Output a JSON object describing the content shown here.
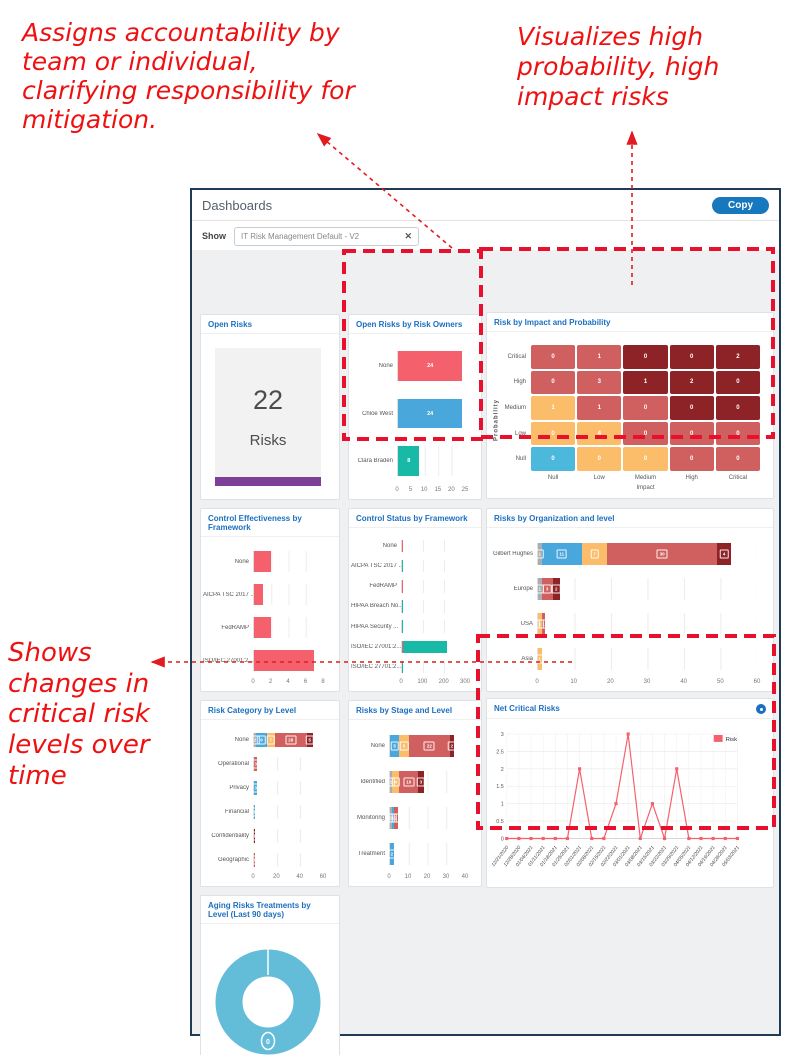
{
  "annotations": {
    "color": "#ee1111",
    "top_left": {
      "lines": [
        "Assigns accountability by",
        "team or individual,",
        "clarifying responsibility for",
        "mitigation."
      ]
    },
    "top_right": {
      "lines": [
        "Visualizes high",
        "probability, high",
        "impact risks"
      ]
    },
    "left": {
      "lines": [
        "Shows",
        "changes in",
        "critical risk",
        "levels over",
        "time"
      ]
    }
  },
  "header": {
    "title": "Dashboards",
    "copy_label": "Copy"
  },
  "filter": {
    "label": "Show",
    "value": "IT Risk Management Default - V2",
    "clear_icon": "✕"
  },
  "colors": {
    "coral": "#f4606c",
    "blue": "#4aa7dc",
    "teal": "#19b9a8",
    "orange": "#fbbd69",
    "red": "#d0605f",
    "darkred": "#8e2327",
    "gray": "#a9aeb4",
    "heat_blue": "#4cb9dc",
    "donut": "#63bdd9",
    "purple": "#7d3f98",
    "accent": "#1b6fc0",
    "highlight_red": "#e8112d"
  },
  "chart_data": [
    {
      "id": "open_risks",
      "type": "stat",
      "title": "Open Risks",
      "value": "22",
      "label": "Risks"
    },
    {
      "id": "open_risks_by_owner",
      "type": "bar",
      "title": "Open Risks by Risk Owners",
      "label_w": 46,
      "xmax": 25,
      "ticks": [
        0,
        5,
        10,
        15,
        20,
        25
      ],
      "values": "plain",
      "rows": [
        {
          "label": "None",
          "segments": [
            {
              "v": 24,
              "c": "coral"
            }
          ]
        },
        {
          "label": "Chloe West",
          "segments": [
            {
              "v": 24,
              "c": "blue"
            }
          ]
        },
        {
          "label": "Clara Braden",
          "segments": [
            {
              "v": 8,
              "c": "teal"
            }
          ]
        }
      ]
    },
    {
      "id": "risk_by_impact_probability",
      "type": "heatmap",
      "title": "Risk by Impact and Probability",
      "xlabel": "Impact",
      "ylabel": "Probability",
      "rows": [
        "Critical",
        "High",
        "Medium",
        "Low",
        "Null"
      ],
      "cols": [
        "Null",
        "Low",
        "Medium",
        "High",
        "Critical"
      ],
      "values": [
        [
          0,
          1,
          0,
          0,
          2
        ],
        [
          0,
          3,
          1,
          2,
          0
        ],
        [
          1,
          1,
          0,
          0,
          0
        ],
        [
          0,
          4,
          0,
          0,
          0
        ],
        [
          0,
          0,
          0,
          0,
          0
        ]
      ],
      "cell_colors": [
        [
          "red",
          "red",
          "darkred",
          "darkred",
          "darkred"
        ],
        [
          "red",
          "red",
          "darkred",
          "darkred",
          "darkred"
        ],
        [
          "orange",
          "red",
          "red",
          "darkred",
          "darkred"
        ],
        [
          "orange",
          "orange",
          "red",
          "red",
          "red"
        ],
        [
          "heat_blue",
          "orange",
          "orange",
          "red",
          "red"
        ]
      ]
    },
    {
      "id": "control_effectiveness",
      "type": "bar",
      "title": "Control Effectiveness by Framework",
      "label_w": 50,
      "xmax": 8,
      "ticks": [
        0,
        2,
        4,
        6,
        8
      ],
      "values": "none",
      "rows": [
        {
          "label": "None",
          "segments": [
            {
              "v": 2,
              "c": "coral"
            }
          ]
        },
        {
          "label": "AICPA TSC 2017 ...",
          "segments": [
            {
              "v": 1,
              "c": "coral"
            }
          ]
        },
        {
          "label": "FedRAMP",
          "segments": [
            {
              "v": 2,
              "c": "coral"
            }
          ]
        },
        {
          "label": "ISO/IEC 27001:2...",
          "segments": [
            {
              "v": 7,
              "c": "coral"
            }
          ]
        }
      ]
    },
    {
      "id": "control_status",
      "type": "bar",
      "title": "Control Status by Framework",
      "label_w": 50,
      "xmax": 300,
      "ticks": [
        0,
        100,
        200,
        300
      ],
      "values": "none",
      "rows": [
        {
          "label": "None",
          "segments": [
            {
              "v": 2,
              "c": "coral"
            }
          ]
        },
        {
          "label": "AICPA TSC 2017 ...",
          "segments": [
            {
              "v": 3,
              "c": "teal"
            }
          ]
        },
        {
          "label": "FedRAMP",
          "segments": [
            {
              "v": 2,
              "c": "coral"
            }
          ]
        },
        {
          "label": "HIPAA Breach No...",
          "segments": [
            {
              "v": 2,
              "c": "teal"
            }
          ]
        },
        {
          "label": "HIPAA Security ...",
          "segments": [
            {
              "v": 2,
              "c": "teal"
            }
          ]
        },
        {
          "label": "ISO/IEC 27001:2...",
          "segments": [
            {
              "v": 5,
              "c": "coral"
            },
            {
              "v": 210,
              "c": "teal"
            }
          ]
        },
        {
          "label": "ISO/IEC 27701:2...",
          "segments": [
            {
              "v": 2,
              "c": "teal"
            }
          ]
        }
      ]
    },
    {
      "id": "risks_by_org",
      "type": "bar",
      "title": "Risks by Organization and level",
      "label_w": 48,
      "xmax": 60,
      "ticks": [
        0,
        10,
        20,
        30,
        40,
        50,
        60
      ],
      "values": "boxed",
      "rows": [
        {
          "label": "Gilbert Hughes",
          "segments": [
            {
              "v": 1,
              "c": "gray"
            },
            {
              "v": 11,
              "c": "blue"
            },
            {
              "v": 7,
              "c": "orange"
            },
            {
              "v": 30,
              "c": "red"
            },
            {
              "v": 4,
              "c": "darkred"
            }
          ]
        },
        {
          "label": "Europe",
          "segments": [
            {
              "v": 1,
              "c": "gray"
            },
            {
              "v": 3,
              "c": "red"
            },
            {
              "v": 2,
              "c": "darkred"
            }
          ]
        },
        {
          "label": "USA",
          "segments": [
            {
              "v": 1,
              "c": "orange"
            },
            {
              "v": 1,
              "c": "red"
            }
          ]
        },
        {
          "label": "Asia",
          "segments": [
            {
              "v": 1,
              "c": "orange"
            }
          ]
        }
      ]
    },
    {
      "id": "risk_category_by_level",
      "type": "bar",
      "title": "Risk Category by Level",
      "label_w": 50,
      "xmax": 60,
      "ticks": [
        0,
        20,
        40,
        60
      ],
      "values": "boxed",
      "rows": [
        {
          "label": "None",
          "segments": [
            {
              "v": 2,
              "c": "gray"
            },
            {
              "v": 9,
              "c": "blue"
            },
            {
              "v": 7,
              "c": "orange"
            },
            {
              "v": 28,
              "c": "red"
            },
            {
              "v": 5,
              "c": "darkred"
            }
          ]
        },
        {
          "label": "Operational",
          "segments": [
            {
              "v": 3,
              "c": "red"
            }
          ]
        },
        {
          "label": "Privacy",
          "segments": [
            {
              "v": 3,
              "c": "blue"
            }
          ]
        },
        {
          "label": "Financial",
          "segments": [
            {
              "v": 1,
              "c": "blue"
            }
          ]
        },
        {
          "label": "Confidentiality",
          "segments": [
            {
              "v": 1,
              "c": "darkred"
            }
          ]
        },
        {
          "label": "Geographic",
          "segments": [
            {
              "v": 1,
              "c": "red"
            }
          ]
        }
      ]
    },
    {
      "id": "risks_by_stage",
      "type": "bar",
      "title": "Risks by Stage and Level",
      "label_w": 38,
      "xmax": 40,
      "ticks": [
        0,
        10,
        20,
        30,
        40
      ],
      "values": "boxed",
      "rows": [
        {
          "label": "None",
          "segments": [
            {
              "v": 5,
              "c": "blue"
            },
            {
              "v": 5,
              "c": "orange"
            },
            {
              "v": 22,
              "c": "red"
            },
            {
              "v": 2,
              "c": "darkred"
            }
          ]
        },
        {
          "label": "Identified",
          "segments": [
            {
              "v": 1,
              "c": "gray"
            },
            {
              "v": 4,
              "c": "orange"
            },
            {
              "v": 10,
              "c": "red"
            },
            {
              "v": 3,
              "c": "darkred"
            }
          ]
        },
        {
          "label": "Monitoring",
          "segments": [
            {
              "v": 1,
              "c": "gray"
            },
            {
              "v": 1,
              "c": "blue"
            },
            {
              "v": 2,
              "c": "red"
            }
          ]
        },
        {
          "label": "Treatment",
          "segments": [
            {
              "v": 2,
              "c": "blue"
            }
          ]
        }
      ]
    },
    {
      "id": "net_critical_risks",
      "type": "line",
      "title": "Net Critical Risks",
      "legend": "Risk",
      "series_color": "coral",
      "ymax": 3,
      "yticks": [
        0,
        0.5,
        1,
        1.5,
        2,
        2.5,
        3
      ],
      "x": [
        "12/21/2020",
        "12/28/2020",
        "01/04/2021",
        "01/11/2021",
        "01/18/2021",
        "01/25/2021",
        "02/01/2021",
        "02/08/2021",
        "02/15/2021",
        "02/22/2021",
        "03/01/2021",
        "03/08/2021",
        "03/15/2021",
        "03/22/2021",
        "03/29/2021",
        "04/05/2021",
        "04/12/2021",
        "04/19/2021",
        "04/26/2021",
        "05/03/2021"
      ],
      "values": [
        0,
        0,
        0,
        0,
        0,
        0,
        2,
        0,
        0,
        1,
        3,
        0,
        1,
        0,
        2,
        0,
        0,
        0,
        0,
        0
      ]
    },
    {
      "id": "aging_risk_treatments",
      "type": "donut",
      "title": "Aging Risks Treatments by Level (Last 90 days)",
      "color": "donut",
      "badge": "0"
    }
  ]
}
